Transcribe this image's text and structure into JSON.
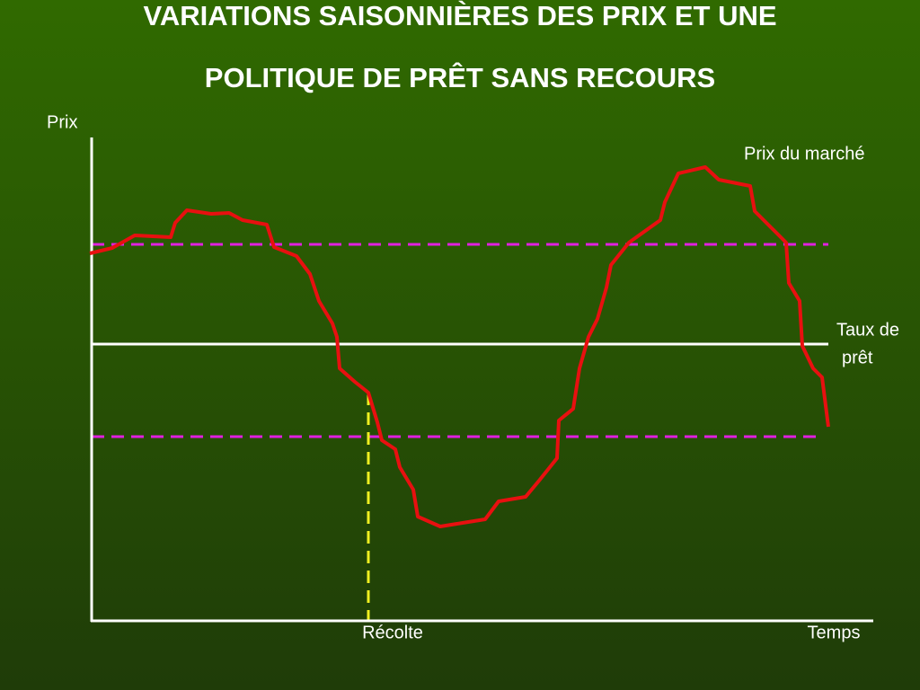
{
  "title": {
    "lines": [
      "VARIATIONS SAISONNIÈRES DES PRIX ET UNE",
      "POLITIQUE DE PRÊT SANS RECOURS"
    ]
  },
  "labels": {
    "y_axis": "Prix",
    "market_price": "Prix du marché",
    "loan_rate": [
      "Taux de",
      "prêt"
    ],
    "harvest": "Récolte",
    "x_axis": "Temps"
  }
}
